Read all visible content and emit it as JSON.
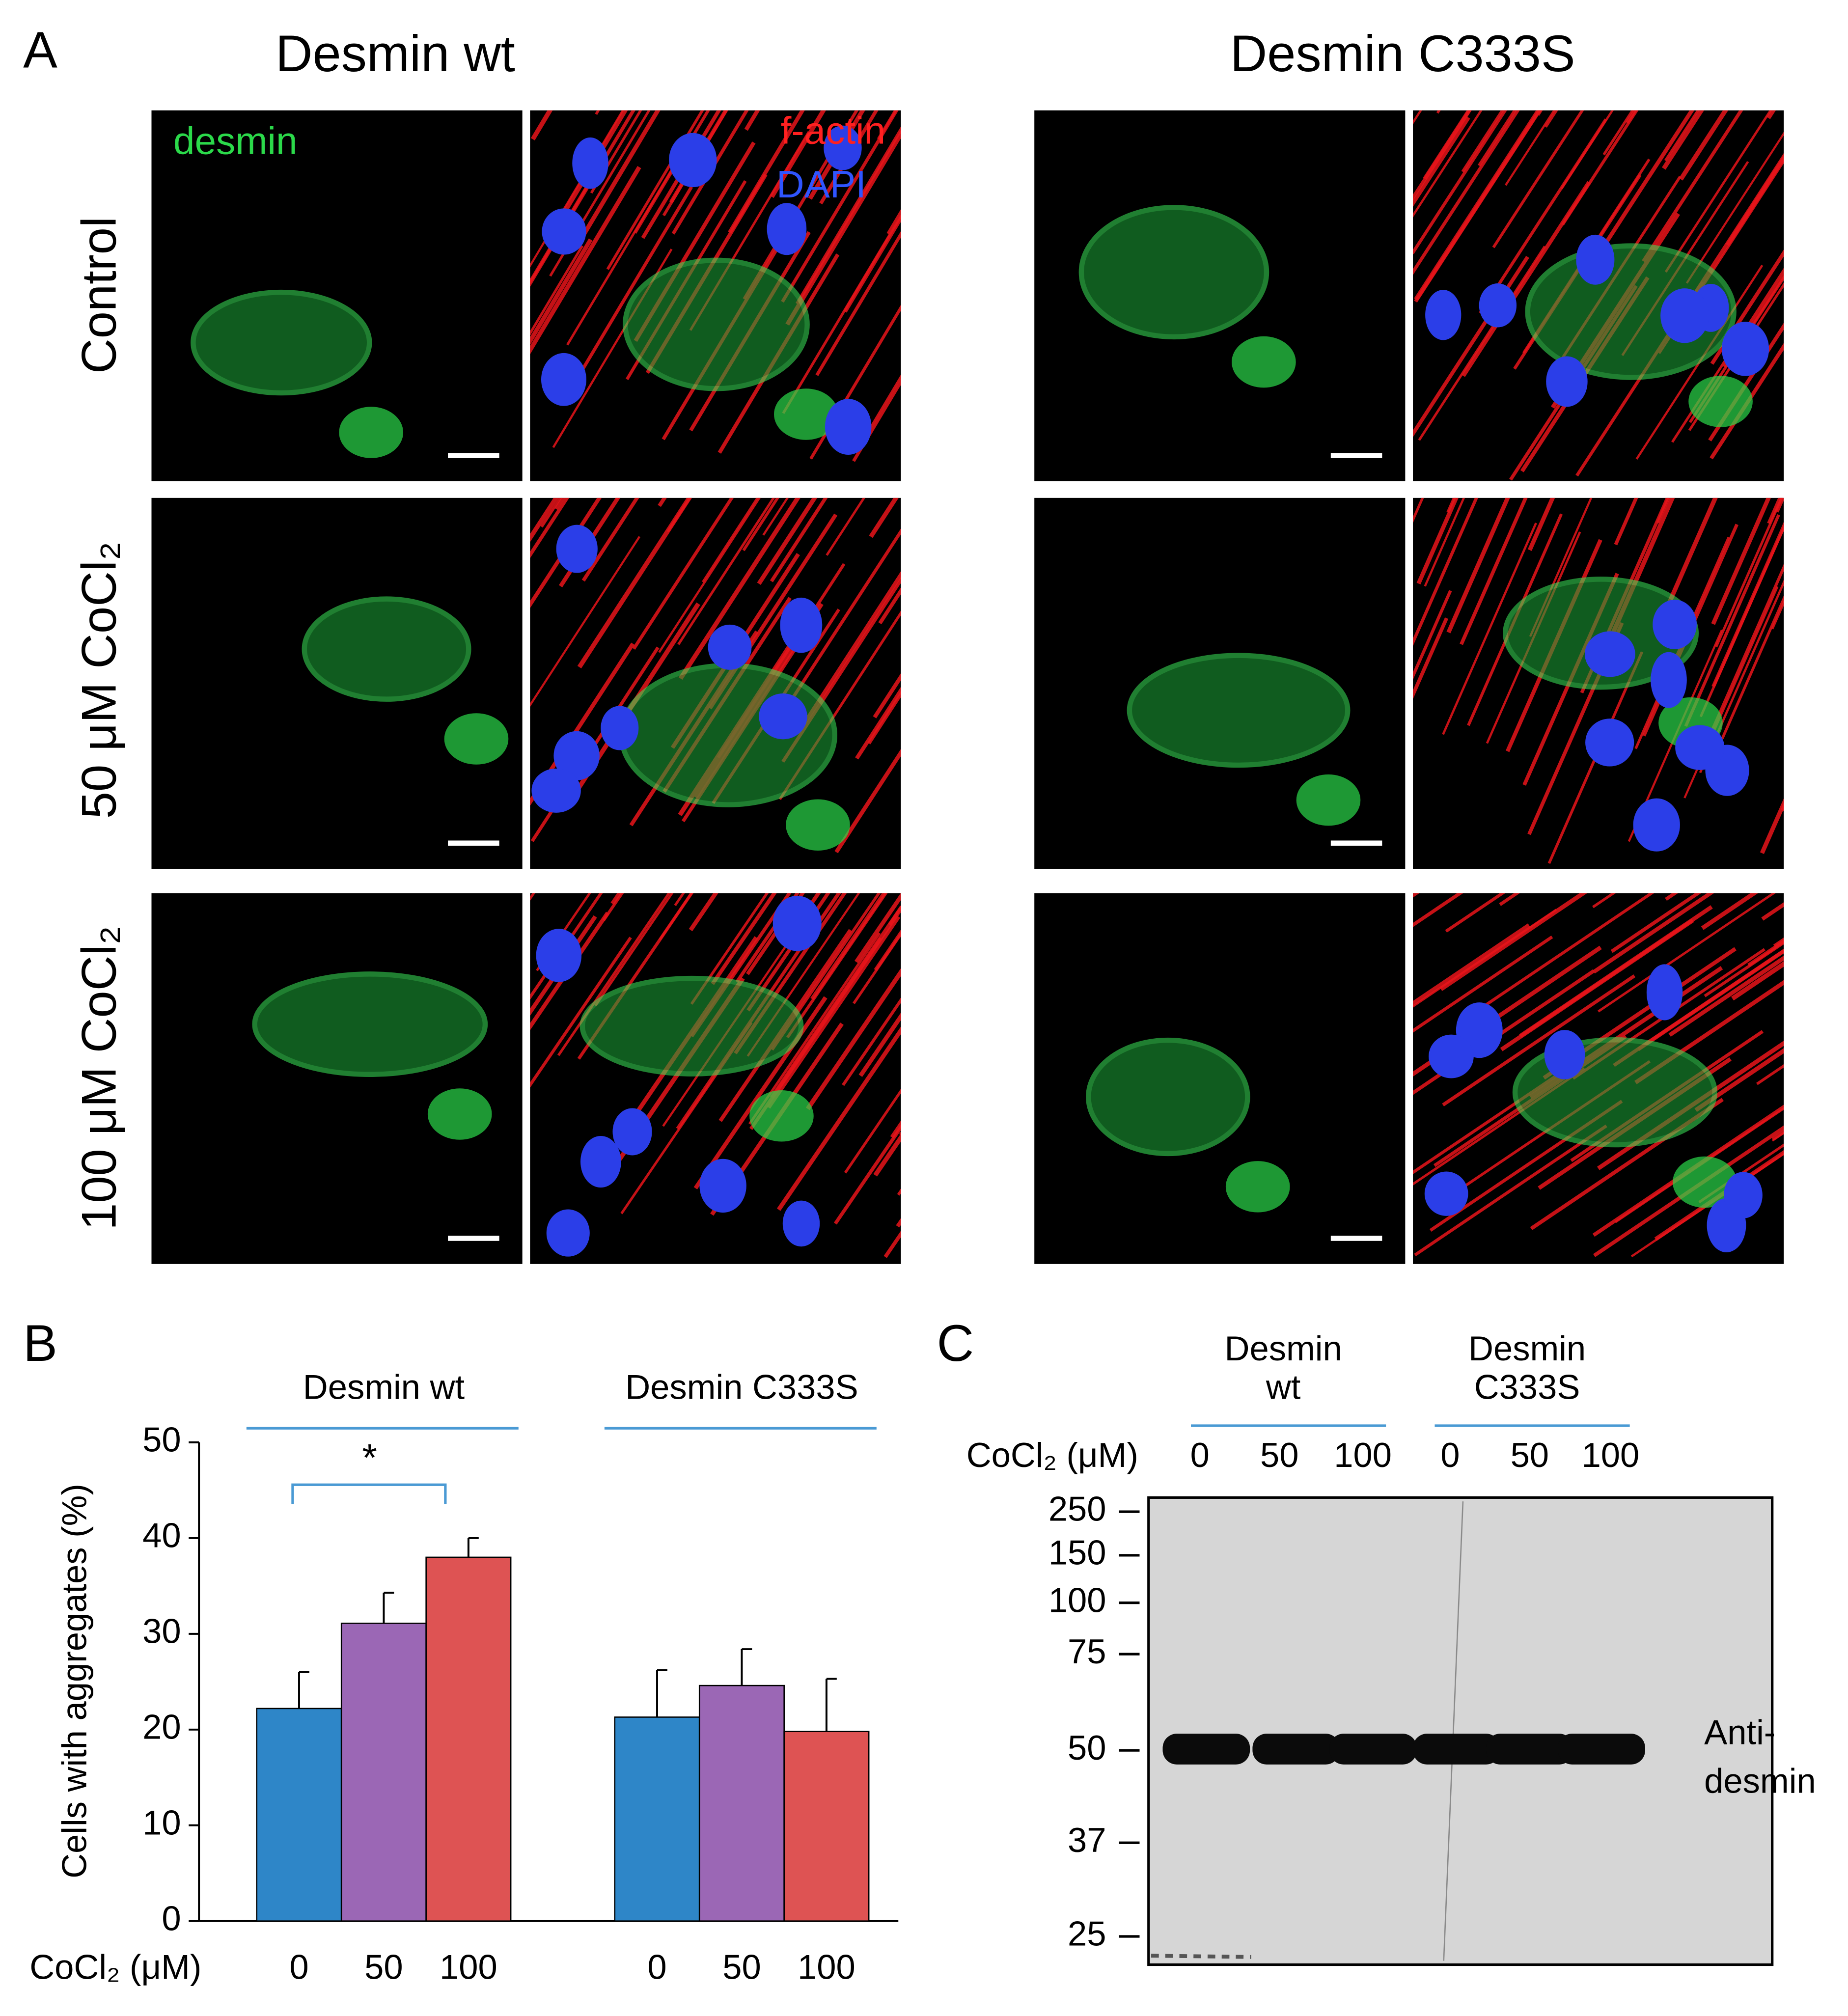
{
  "panel_labels": [
    "A",
    "B",
    "C"
  ],
  "micrographs": {
    "columns": [
      "Desmin wt",
      "Desmin C333S"
    ],
    "rows": [
      "Control",
      "50 μM CoCl₂",
      "100 μM CoCl₂"
    ],
    "channels": [
      "desmin",
      "f-actin",
      "DAPI"
    ]
  },
  "chart_data": {
    "type": "bar",
    "ylabel": "Cells with aggregates (%)",
    "xlabel": "CoCl₂ (μM)",
    "categories": [
      "Desmin wt",
      "Desmin C333S"
    ],
    "series": [
      {
        "name": "0",
        "color": "#2e86c8",
        "values": [
          22.2,
          21.3
        ],
        "errors": [
          3.8,
          4.9
        ]
      },
      {
        "name": "50",
        "color": "#9b67b5",
        "values": [
          31.1,
          24.6
        ],
        "errors": [
          3.2,
          3.8
        ]
      },
      {
        "name": "100",
        "color": "#de5353",
        "values": [
          38.0,
          19.8
        ],
        "errors": [
          2.0,
          5.5
        ]
      }
    ],
    "ylim": [
      0,
      50
    ],
    "yticks": [
      0,
      10,
      20,
      30,
      40,
      50
    ],
    "annotations": [
      "*"
    ]
  },
  "blot": {
    "groups": [
      [
        "Desmin",
        "wt"
      ],
      [
        "Desmin",
        "C333S"
      ]
    ],
    "lane_axis_label": "CoCl₂ (μM)",
    "lanes": [
      "0",
      "50",
      "100",
      "0",
      "50",
      "100"
    ],
    "markers": [
      "250",
      "150",
      "100",
      "75",
      "50",
      "37",
      "25"
    ],
    "antibody": [
      "Anti-",
      "desmin"
    ]
  }
}
